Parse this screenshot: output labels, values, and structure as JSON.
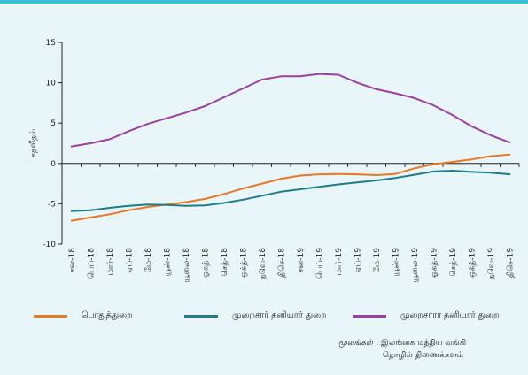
{
  "chart_data": {
    "type": "line",
    "ylabel": "சதவீதம்",
    "ylim": [
      -10,
      15
    ],
    "yticks": [
      15,
      10,
      5,
      0,
      -5,
      -10
    ],
    "categories": [
      "சன-18",
      "பெப்-18",
      "மார்-18",
      "ஏப்-18",
      "மே-18",
      "யூன்-18",
      "யூலை-18",
      "ஓகத்-18",
      "செத்-18",
      "ஒக்த்-18",
      "நவெ-18",
      "திசெ-18",
      "சன-19",
      "பெப்-19",
      "மார்-19",
      "ஏப்-19",
      "மே-19",
      "யூன்-19",
      "யூலை-19",
      "ஓகத்-19",
      "செத்-19",
      "ஒக்த்-19",
      "நவெ-19",
      "திசெ-19"
    ],
    "series": [
      {
        "name": "பொதுத்துறை",
        "color": "#e87722",
        "values": [
          -7.1,
          -6.7,
          -6.3,
          -5.8,
          -5.4,
          -5.1,
          -4.8,
          -4.4,
          -3.8,
          -3.1,
          -2.5,
          -1.9,
          -1.5,
          -1.35,
          -1.3,
          -1.35,
          -1.45,
          -1.3,
          -0.6,
          -0.1,
          0.2,
          0.5,
          0.9,
          1.1
        ]
      },
      {
        "name": "முறைசார் தனியார் துறை",
        "color": "#1f7a8c",
        "values": [
          -5.9,
          -5.8,
          -5.5,
          -5.25,
          -5.1,
          -5.15,
          -5.25,
          -5.2,
          -4.9,
          -4.5,
          -4.0,
          -3.5,
          -3.2,
          -2.9,
          -2.6,
          -2.35,
          -2.1,
          -1.8,
          -1.4,
          -1.0,
          -0.9,
          -1.05,
          -1.15,
          -1.35
        ]
      },
      {
        "name": "முறைசாரா தனியார் துறை",
        "color": "#9b3fa5",
        "values": [
          2.1,
          2.5,
          3.0,
          4.0,
          4.9,
          5.6,
          6.3,
          7.1,
          8.2,
          9.3,
          10.4,
          10.8,
          10.8,
          11.1,
          11.0,
          10.0,
          9.2,
          8.7,
          8.1,
          7.2,
          6.0,
          4.6,
          3.5,
          2.6
        ]
      }
    ]
  },
  "source": {
    "label": "மூலங்கள்",
    "line1": "இலங்கை மத்திய வங்கி",
    "line2": "தொழில் திணைக்களம்"
  }
}
